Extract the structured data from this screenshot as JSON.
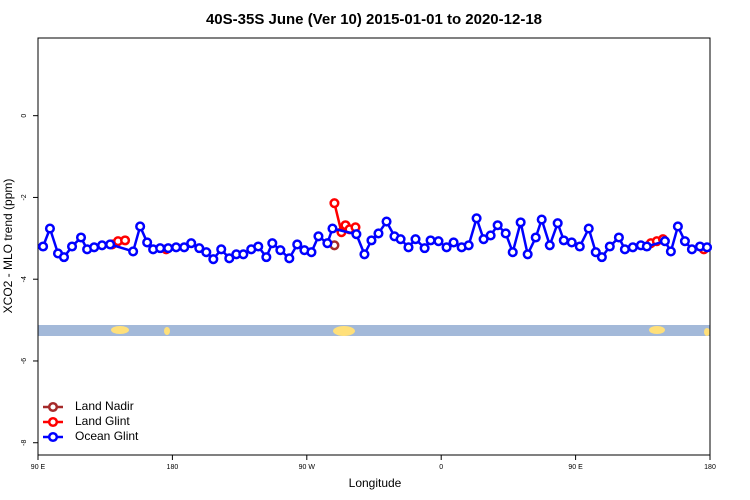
{
  "chart_data": {
    "type": "line",
    "title": "40S-35S June (Ver 10)   2015-01-01 to 2020-12-18",
    "x_label": "Longitude",
    "y_label": "XCO2 - MLO trend (ppm)",
    "xlim": [
      90,
      540
    ],
    "ylim": [
      -8.3,
      1.9
    ],
    "xticks": [
      {
        "value": 90,
        "label": "90 E"
      },
      {
        "value": 180,
        "label": "180"
      },
      {
        "value": 270,
        "label": "90 W"
      },
      {
        "value": 360,
        "label": "0"
      },
      {
        "value": 450,
        "label": "90 E"
      },
      {
        "value": 540,
        "label": "180"
      }
    ],
    "yticks": [
      0,
      -2,
      -4,
      -6,
      -8
    ],
    "legend": "bottom-left",
    "series": [
      {
        "name": "Land Nadir",
        "color": "#a52a2a",
        "x": [
          288.5
        ],
        "values": [
          -3.17
        ]
      },
      {
        "name": "Land Glint",
        "color": "#ff0000",
        "x": [
          139.6,
          143.6,
          148.3,
          null,
          175.8,
          null,
          288.5,
          293.2,
          295.9,
          298.6,
          302.6,
          null,
          500.4,
          504.4,
          508.5,
          null,
          535.9
        ],
        "values": [
          -3.15,
          -3.07,
          -3.05,
          null,
          -3.27,
          null,
          -2.14,
          -2.85,
          -2.68,
          -2.78,
          -2.73,
          null,
          -3.12,
          -3.07,
          -3.02,
          null,
          -3.27
        ]
      },
      {
        "name": "Ocean Glint",
        "color": "#0000ff",
        "x": [
          93.4,
          98.0,
          103.4,
          107.4,
          112.8,
          118.8,
          122.9,
          127.6,
          132.9,
          138.3,
          153.7,
          158.4,
          163.1,
          167.1,
          171.8,
          177.2,
          182.5,
          187.9,
          192.6,
          198.0,
          202.7,
          207.4,
          212.7,
          218.1,
          222.8,
          227.5,
          232.8,
          237.5,
          242.9,
          246.9,
          252.3,
          258.3,
          263.6,
          268.4,
          273.1,
          277.8,
          283.8,
          287.2,
          303.2,
          308.6,
          313.3,
          318.0,
          323.4,
          328.7,
          332.8,
          338.1,
          342.8,
          348.9,
          352.9,
          358.2,
          363.6,
          368.3,
          373.7,
          378.4,
          383.7,
          388.4,
          393.1,
          397.8,
          403.2,
          407.9,
          413.2,
          417.9,
          423.3,
          427.3,
          432.7,
          438.0,
          442.1,
          447.4,
          452.8,
          458.8,
          463.5,
          467.6,
          472.9,
          479.0,
          483.0,
          488.3,
          493.7,
          497.7,
          509.8,
          513.8,
          518.5,
          523.2,
          527.9,
          533.3,
          538.0
        ],
        "values": [
          -3.2,
          -2.76,
          -3.37,
          -3.46,
          -3.2,
          -2.98,
          -3.27,
          -3.22,
          -3.17,
          -3.15,
          -3.32,
          -2.71,
          -3.1,
          -3.27,
          -3.24,
          -3.24,
          -3.22,
          -3.22,
          -3.12,
          -3.24,
          -3.34,
          -3.51,
          -3.27,
          -3.49,
          -3.39,
          -3.39,
          -3.27,
          -3.2,
          -3.46,
          -3.12,
          -3.29,
          -3.49,
          -3.15,
          -3.29,
          -3.34,
          -2.95,
          -3.12,
          -2.76,
          -2.9,
          -3.39,
          -3.05,
          -2.88,
          -2.59,
          -2.95,
          -3.02,
          -3.22,
          -3.02,
          -3.24,
          -3.05,
          -3.07,
          -3.22,
          -3.1,
          -3.22,
          -3.17,
          -2.51,
          -3.02,
          -2.93,
          -2.68,
          -2.88,
          -3.34,
          -2.61,
          -3.39,
          -2.98,
          -2.54,
          -3.17,
          -2.63,
          -3.05,
          -3.1,
          -3.2,
          -2.76,
          -3.34,
          -3.46,
          -3.2,
          -2.98,
          -3.27,
          -3.22,
          -3.17,
          -3.2,
          -3.07,
          -3.32,
          -2.71,
          -3.07,
          -3.27,
          -3.2,
          -3.22
        ]
      }
    ]
  }
}
